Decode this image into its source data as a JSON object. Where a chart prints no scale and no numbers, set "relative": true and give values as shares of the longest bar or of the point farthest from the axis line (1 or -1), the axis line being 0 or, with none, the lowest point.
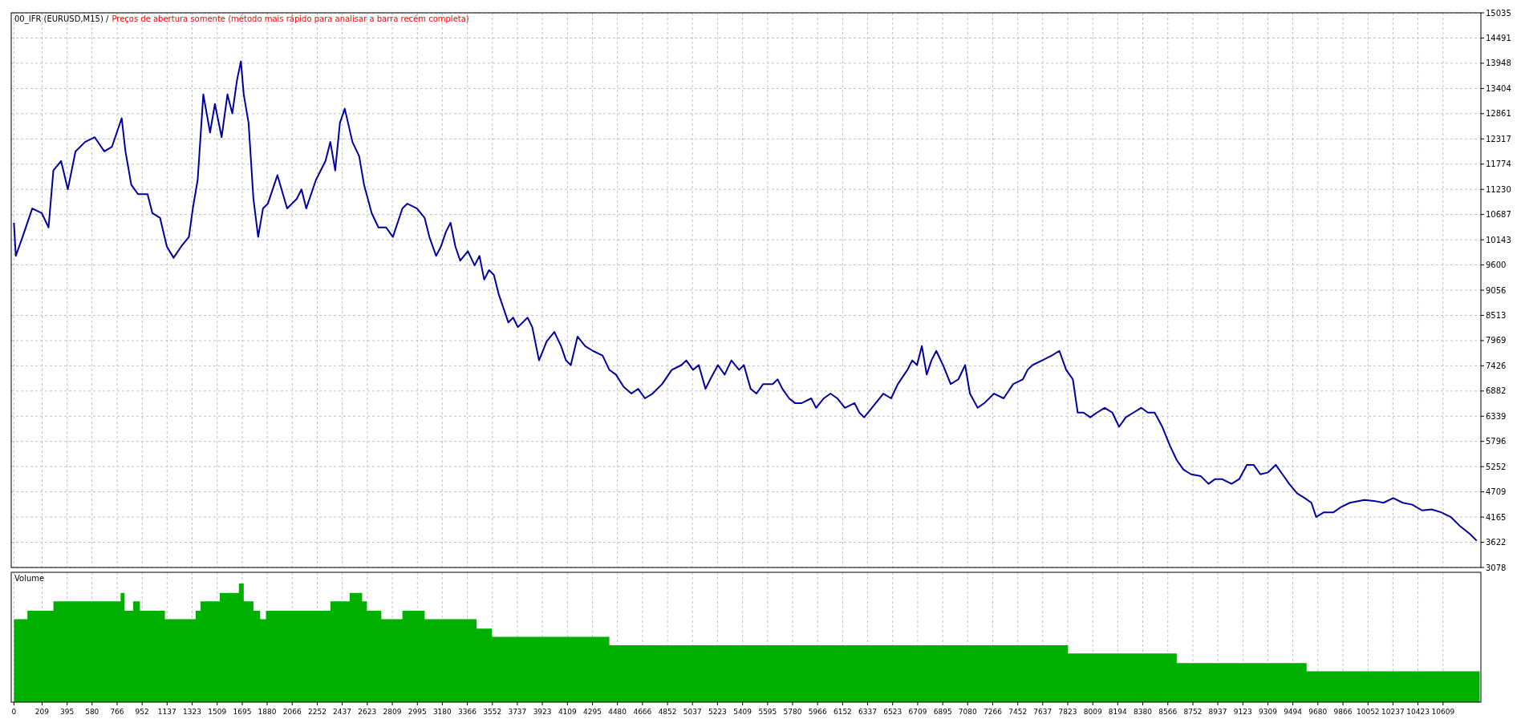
{
  "chart_data": [
    {
      "type": "line",
      "title": "00_IFR (EURUSD,M15) /",
      "subtitle": "Preços de abertura somente (método mais rápido para analisar a barra recém completa)",
      "color": "#0000a0",
      "grid": true,
      "tick_labels": "y",
      "xlim": [
        -20,
        10890
      ],
      "ylim": [
        3078,
        15035
      ],
      "xticks": [
        0,
        209,
        395,
        580,
        766,
        952,
        1137,
        1323,
        1509,
        1695,
        1880,
        2066,
        2252,
        2437,
        2623,
        2809,
        2995,
        3180,
        3366,
        3552,
        3737,
        3923,
        4109,
        4295,
        4480,
        4666,
        4852,
        5037,
        5223,
        5409,
        5595,
        5780,
        5966,
        6152,
        6337,
        6523,
        6709,
        6895,
        7080,
        7266,
        7452,
        7637,
        7823,
        8009,
        8194,
        8380,
        8566,
        8752,
        8937,
        9123,
        9309,
        9494,
        9680,
        9866,
        10052,
        10237,
        10423,
        10609
      ],
      "yticks": [
        3078,
        3622,
        4165,
        4709,
        5252,
        5796,
        6339,
        6882,
        7426,
        7969,
        8513,
        9056,
        9600,
        10143,
        10687,
        11230,
        11774,
        12317,
        12861,
        13404,
        13948,
        14491,
        15035
      ],
      "x": [
        0,
        14,
        64,
        136,
        207,
        257,
        293,
        350,
        400,
        457,
        528,
        600,
        671,
        728,
        764,
        800,
        828,
        871,
        921,
        992,
        1028,
        1085,
        1135,
        1185,
        1242,
        1299,
        1328,
        1364,
        1406,
        1456,
        1492,
        1542,
        1585,
        1621,
        1656,
        1685,
        1706,
        1742,
        1778,
        1813,
        1849,
        1885,
        1956,
        2028,
        2099,
        2135,
        2170,
        2242,
        2313,
        2349,
        2385,
        2420,
        2456,
        2513,
        2563,
        2599,
        2656,
        2706,
        2763,
        2813,
        2884,
        2920,
        2992,
        3049,
        3084,
        3134,
        3170,
        3206,
        3241,
        3277,
        3313,
        3370,
        3420,
        3456,
        3491,
        3527,
        3563,
        3598,
        3634,
        3670,
        3706,
        3741,
        3813,
        3848,
        3898,
        3955,
        4012,
        4062,
        4098,
        4134,
        4184,
        4241,
        4298,
        4370,
        4420,
        4469,
        4527,
        4584,
        4634,
        4684,
        4741,
        4812,
        4884,
        4955,
        4991,
        5041,
        5084,
        5134,
        5169,
        5226,
        5276,
        5326,
        5383,
        5419,
        5469,
        5512,
        5562,
        5633,
        5669,
        5705,
        5755,
        5798,
        5848,
        5919,
        5955,
        6012,
        6062,
        6112,
        6169,
        6240,
        6276,
        6312,
        6369,
        6454,
        6512,
        6562,
        6633,
        6669,
        6704,
        6740,
        6776,
        6811,
        6847,
        6897,
        6954,
        7011,
        7061,
        7097,
        7154,
        7204,
        7276,
        7347,
        7418,
        7490,
        7525,
        7561,
        7633,
        7704,
        7761,
        7811,
        7861,
        7897,
        7940,
        7990,
        8040,
        8097,
        8154,
        8204,
        8254,
        8311,
        8368,
        8418,
        8468,
        8525,
        8582,
        8632,
        8682,
        8739,
        8811,
        8868,
        8918,
        8968,
        9039,
        9096,
        9153,
        9203,
        9253,
        9310,
        9367,
        9417,
        9467,
        9525,
        9582,
        9632,
        9667,
        9724,
        9796,
        9846,
        9917,
        10024,
        10096,
        10167,
        10239,
        10310,
        10381,
        10453,
        10524,
        10595,
        10667,
        10738,
        10809,
        10859
      ],
      "values": [
        10511,
        9795,
        10204,
        10818,
        10716,
        10409,
        11637,
        11842,
        11228,
        12047,
        12251,
        12353,
        12047,
        12149,
        12456,
        12763,
        12047,
        11330,
        11125,
        11125,
        10716,
        10613,
        9999,
        9754,
        9999,
        10204,
        10818,
        11432,
        13275,
        12456,
        13070,
        12353,
        13275,
        12865,
        13582,
        13991,
        13275,
        12661,
        11023,
        10204,
        10818,
        10921,
        11535,
        10818,
        11023,
        11228,
        10818,
        11432,
        11842,
        12251,
        11637,
        12661,
        12968,
        12251,
        11944,
        11330,
        10716,
        10409,
        10409,
        10204,
        10818,
        10921,
        10818,
        10613,
        10204,
        9795,
        9999,
        10307,
        10511,
        9999,
        9692,
        9897,
        9590,
        9795,
        9283,
        9488,
        9385,
        8976,
        8669,
        8362,
        8464,
        8260,
        8464,
        8260,
        7543,
        7952,
        8157,
        7850,
        7543,
        7441,
        8055,
        7850,
        7748,
        7646,
        7339,
        7236,
        6970,
        6827,
        6929,
        6724,
        6827,
        7032,
        7339,
        7441,
        7543,
        7339,
        7441,
        6929,
        7134,
        7441,
        7236,
        7543,
        7339,
        7441,
        6929,
        6827,
        7032,
        7032,
        7134,
        6929,
        6724,
        6622,
        6622,
        6724,
        6520,
        6724,
        6827,
        6724,
        6520,
        6622,
        6417,
        6315,
        6520,
        6827,
        6724,
        7032,
        7339,
        7543,
        7441,
        7850,
        7236,
        7543,
        7748,
        7441,
        7032,
        7134,
        7441,
        6827,
        6520,
        6622,
        6827,
        6724,
        7032,
        7134,
        7339,
        7441,
        7543,
        7646,
        7748,
        7339,
        7134,
        6417,
        6417,
        6315,
        6417,
        6520,
        6417,
        6110,
        6315,
        6417,
        6520,
        6417,
        6417,
        6110,
        5701,
        5394,
        5189,
        5087,
        5046,
        4882,
        4984,
        4984,
        4882,
        4984,
        5291,
        5291,
        5087,
        5128,
        5291,
        5087,
        4882,
        4677,
        4575,
        4473,
        4166,
        4268,
        4268,
        4370,
        4473,
        4534,
        4514,
        4473,
        4575,
        4473,
        4432,
        4309,
        4330,
        4268,
        4166,
        3962,
        3798,
        3655
      ]
    },
    {
      "type": "area",
      "title": "Volume",
      "relative": true,
      "color": "#00b000",
      "grid": "x",
      "tick_labels": "x",
      "xlim": [
        -20,
        10890
      ],
      "xticks": [
        0,
        209,
        395,
        580,
        766,
        952,
        1137,
        1323,
        1509,
        1695,
        1880,
        2066,
        2252,
        2437,
        2623,
        2809,
        2995,
        3180,
        3366,
        3552,
        3737,
        3923,
        4109,
        4295,
        4480,
        4666,
        4852,
        5037,
        5223,
        5409,
        5595,
        5780,
        5966,
        6152,
        6337,
        6523,
        6709,
        6895,
        7080,
        7266,
        7452,
        7637,
        7823,
        8009,
        8194,
        8380,
        8566,
        8752,
        8937,
        9123,
        9309,
        9494,
        9680,
        9866,
        10052,
        10237,
        10423,
        10609
      ],
      "x": [
        0,
        100,
        100,
        293,
        293,
        792,
        792,
        821,
        821,
        885,
        885,
        935,
        935,
        1121,
        1121,
        1349,
        1349,
        1385,
        1385,
        1528,
        1528,
        1670,
        1670,
        1706,
        1706,
        1778,
        1778,
        1828,
        1828,
        1871,
        1871,
        2349,
        2349,
        2492,
        2492,
        2585,
        2585,
        2620,
        2620,
        2727,
        2727,
        2884,
        2884,
        3049,
        3049,
        3434,
        3434,
        3548,
        3548,
        4420,
        4420,
        7825,
        7825,
        8632,
        8632,
        9596,
        9596,
        10881
      ],
      "values": [
        0.7,
        0.7,
        0.77,
        0.77,
        0.85,
        0.85,
        0.92,
        0.92,
        0.77,
        0.77,
        0.85,
        0.85,
        0.77,
        0.77,
        0.7,
        0.7,
        0.77,
        0.77,
        0.85,
        0.85,
        0.92,
        0.92,
        1,
        1,
        0.85,
        0.85,
        0.77,
        0.77,
        0.7,
        0.7,
        0.77,
        0.77,
        0.85,
        0.85,
        0.92,
        0.92,
        0.85,
        0.85,
        0.77,
        0.77,
        0.7,
        0.7,
        0.77,
        0.77,
        0.7,
        0.7,
        0.62,
        0.62,
        0.55,
        0.55,
        0.48,
        0.48,
        0.41,
        0.41,
        0.33,
        0.33,
        0.26,
        0.26
      ]
    }
  ]
}
